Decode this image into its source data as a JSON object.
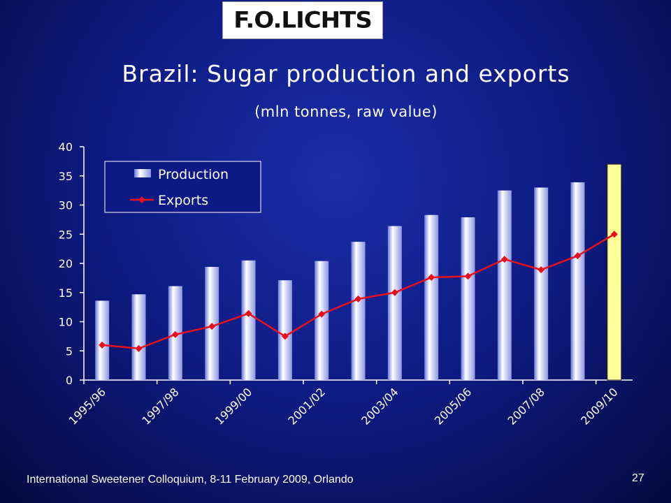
{
  "logo": {
    "text": "F.O.LICHTS"
  },
  "footer": {
    "text": "International Sweetener Colloquium, 8-11 February 2009, Orlando",
    "page": "27"
  },
  "chart_data": {
    "type": "bar",
    "title": "Brazil: Sugar production and exports",
    "subtitle": "(mln tonnes, raw value)",
    "xlabel": "",
    "ylabel": "",
    "ylim": [
      0,
      40
    ],
    "yticks": [
      0,
      5,
      10,
      15,
      20,
      25,
      30,
      35,
      40
    ],
    "categories": [
      "1995/96",
      "1996/97",
      "1997/98",
      "1998/99",
      "1999/00",
      "2000/01",
      "2001/02",
      "2002/03",
      "2003/04",
      "2004/05",
      "2005/06",
      "2006/07",
      "2007/08",
      "2008/09",
      "2009/10"
    ],
    "tick_labels": [
      "1995/96",
      "1997/98",
      "1999/00",
      "2001/02",
      "2003/04",
      "2005/06",
      "2007/08",
      "2009/10"
    ],
    "legend_position": "top-left",
    "grid": false,
    "highlight_category": "2009/10",
    "highlight_color": "#ffff99",
    "series": [
      {
        "name": "Production",
        "type": "bar",
        "color": "#b8c0f0",
        "values": [
          13.6,
          14.7,
          16.1,
          19.4,
          20.5,
          17.1,
          20.4,
          23.7,
          26.4,
          28.3,
          27.9,
          32.5,
          33.0,
          33.9,
          37.0
        ]
      },
      {
        "name": "Exports",
        "type": "line",
        "color": "#e8101a",
        "values": [
          6.0,
          5.4,
          7.8,
          9.2,
          11.4,
          7.5,
          11.3,
          13.9,
          15.0,
          17.6,
          17.8,
          20.7,
          18.9,
          21.3,
          25.0
        ]
      }
    ]
  }
}
